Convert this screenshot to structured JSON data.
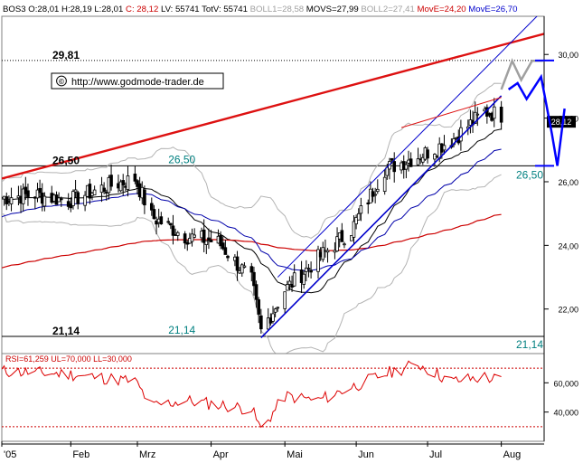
{
  "header": {
    "parts": [
      {
        "text": "BOS3 O:28,01 H:28,19 L:28,01",
        "color": "#000000"
      },
      {
        "text": "C: 28,12",
        "color": "#cc0000"
      },
      {
        "text": "LV: 55741 TotV: 55741",
        "color": "#000000"
      },
      {
        "text": "BOLL1=28,58",
        "color": "#a0a0a0"
      },
      {
        "text": "MOVS=27,99",
        "color": "#000000"
      },
      {
        "text": "BOLL2=27,41",
        "color": "#a0a0a0"
      },
      {
        "text": "MovE=24,20",
        "color": "#cc0000"
      },
      {
        "text": "MovE=26,70",
        "color": "#0000cc"
      }
    ]
  },
  "watermark": {
    "symbol": "©",
    "url": "http://www.godmode-trader.de"
  },
  "price_axis": {
    "ticks": [
      {
        "value": 22,
        "label": "22,00"
      },
      {
        "value": 24,
        "label": "24,00"
      },
      {
        "value": 26,
        "label": "26,00"
      },
      {
        "value": 28,
        "label": "28,00"
      },
      {
        "value": 30,
        "label": "30,00"
      }
    ],
    "last_price_label": "28,12"
  },
  "rsi_axis": {
    "ticks": [
      {
        "value": 40,
        "label": "40,000"
      },
      {
        "value": 60,
        "label": "60,000"
      }
    ]
  },
  "time_axis": {
    "labels": [
      "'05",
      "Feb",
      "Mrz",
      "Apr",
      "Mai",
      "Jun",
      "Jul",
      "Aug"
    ]
  },
  "levels": [
    {
      "value": 29.81,
      "label": "29,81",
      "style": "dotted"
    },
    {
      "value": 26.5,
      "label": "26,50",
      "style": "solid"
    },
    {
      "value": 21.14,
      "label": "21,14",
      "style": "solid"
    }
  ],
  "level_tags": {
    "level_26_50": "26,50",
    "level_21_14": "21,14"
  },
  "rsi": {
    "label": "RSI=61,259 UL=70,000 LL=30,000",
    "upper": 70,
    "lower": 30,
    "value": 61.259
  },
  "colors": {
    "candle": "#000000",
    "boll": "#b4b4b4",
    "movs": "#000000",
    "move_long": "#cc0000",
    "move_short": "#0000aa",
    "trend_red": "#dd1111",
    "trend_blue": "#0000cc",
    "teal": "#008080",
    "rsi_line": "#dd0000",
    "projection_blue": "#0000ff",
    "projection_grey": "#a0a0a0"
  },
  "chart_data": [
    {
      "type": "candlestick",
      "instrument": "BOS3",
      "x_range": [
        "2005-01-03",
        "2005-08-19"
      ],
      "ylim": [
        20.6,
        31.2
      ],
      "grid": false,
      "series": [
        {
          "name": "BOS3",
          "type": "candlestick",
          "close_points": [
            [
              "2005-01-03",
              25.5
            ],
            [
              "2005-01-17",
              25.6
            ],
            [
              "2005-01-31",
              25.4
            ],
            [
              "2005-02-14",
              25.8
            ],
            [
              "2005-02-28",
              26.1
            ],
            [
              "2005-03-07",
              24.9
            ],
            [
              "2005-03-21",
              24.3
            ],
            [
              "2005-04-04",
              24.1
            ],
            [
              "2005-04-18",
              22.9
            ],
            [
              "2005-04-22",
              21.3
            ],
            [
              "2005-05-02",
              22.6
            ],
            [
              "2005-05-16",
              23.6
            ],
            [
              "2005-05-30",
              24.5
            ],
            [
              "2005-06-13",
              26.4
            ],
            [
              "2005-06-27",
              26.8
            ],
            [
              "2005-07-11",
              27.3
            ],
            [
              "2005-07-25",
              28.2
            ],
            [
              "2005-08-01",
              28.1
            ]
          ]
        },
        {
          "name": "BOLL1",
          "type": "line",
          "last": 28.58
        },
        {
          "name": "MOVS",
          "type": "line",
          "last": 27.99
        },
        {
          "name": "BOLL2",
          "type": "line",
          "last": 27.41
        },
        {
          "name": "MovE",
          "type": "line",
          "last": 24.2
        },
        {
          "name": "MovE",
          "type": "line",
          "last": 26.7
        }
      ],
      "trendlines": [
        {
          "from": [
            "2005-01-03",
            26.1
          ],
          "to": [
            "2005-08-19",
            30.65
          ]
        },
        {
          "from": [
            "2005-04-22",
            21.1
          ],
          "to": [
            "2005-08-01",
            28.7
          ]
        }
      ],
      "annotations": [
        "29,81",
        "26,50",
        "21,14",
        "28,12"
      ]
    },
    {
      "type": "line",
      "title": "RSI",
      "x_range": [
        "2005-01-03",
        "2005-08-19"
      ],
      "ylim": [
        20,
        80
      ],
      "thresholds": [
        70,
        30
      ],
      "series": [
        {
          "name": "RSI",
          "points": [
            [
              "2005-01-03",
              68
            ],
            [
              "2005-01-31",
              66
            ],
            [
              "2005-02-28",
              61
            ],
            [
              "2005-03-07",
              44
            ],
            [
              "2005-03-21",
              48
            ],
            [
              "2005-04-18",
              42
            ],
            [
              "2005-04-22",
              28
            ],
            [
              "2005-05-02",
              51
            ],
            [
              "2005-05-16",
              48
            ],
            [
              "2005-06-13",
              66
            ],
            [
              "2005-06-27",
              73
            ],
            [
              "2005-07-11",
              61
            ],
            [
              "2005-07-25",
              64
            ],
            [
              "2005-08-01",
              61.259
            ]
          ]
        }
      ]
    }
  ]
}
